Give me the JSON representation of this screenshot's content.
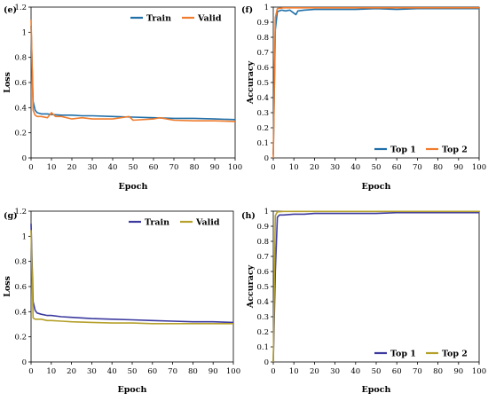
{
  "chart_data": [
    {
      "panel": "(e)",
      "type": "line",
      "xlabel": "Epoch",
      "ylabel": "Loss",
      "xlim": [
        0,
        100
      ],
      "ylim": [
        0,
        1.2
      ],
      "xticks": [
        0,
        10,
        20,
        30,
        40,
        50,
        60,
        70,
        80,
        90,
        100
      ],
      "yticks": [
        "0",
        "0.2",
        "0.4",
        "0.6",
        "0.8",
        "1",
        "1.2"
      ],
      "legend": "top-right",
      "series": [
        {
          "name": "Train",
          "color": "#1f6fa8",
          "x": [
            0,
            1,
            2,
            3,
            5,
            8,
            10,
            15,
            20,
            25,
            30,
            40,
            50,
            60,
            70,
            80,
            90,
            100
          ],
          "y": [
            1.05,
            0.45,
            0.38,
            0.36,
            0.35,
            0.35,
            0.345,
            0.34,
            0.34,
            0.335,
            0.335,
            0.33,
            0.325,
            0.32,
            0.315,
            0.315,
            0.31,
            0.305
          ]
        },
        {
          "name": "Valid",
          "color": "#f07c2d",
          "x": [
            0,
            1,
            2,
            3,
            5,
            8,
            10,
            12,
            15,
            20,
            25,
            30,
            40,
            48,
            50,
            60,
            63,
            70,
            80,
            90,
            100
          ],
          "y": [
            1.1,
            0.38,
            0.34,
            0.33,
            0.33,
            0.32,
            0.36,
            0.33,
            0.33,
            0.31,
            0.32,
            0.31,
            0.31,
            0.33,
            0.3,
            0.31,
            0.32,
            0.3,
            0.295,
            0.295,
            0.29
          ]
        }
      ]
    },
    {
      "panel": "(f)",
      "type": "line",
      "xlabel": "Epoch",
      "ylabel": "Accuracy",
      "xlim": [
        0,
        100
      ],
      "ylim": [
        0,
        1
      ],
      "xticks": [
        0,
        10,
        20,
        30,
        40,
        50,
        60,
        70,
        80,
        90,
        100
      ],
      "yticks": [
        "0",
        "0.1",
        "0.2",
        "0.3",
        "0.4",
        "0.5",
        "0.6",
        "0.7",
        "0.8",
        "0.9",
        "1"
      ],
      "legend": "bottom-right",
      "series": [
        {
          "name": "Top 1",
          "color": "#1f6fa8",
          "x": [
            0,
            1,
            2,
            4,
            6,
            8,
            10,
            11,
            12,
            15,
            20,
            30,
            40,
            50,
            60,
            70,
            80,
            90,
            100
          ],
          "y": [
            0.02,
            0.85,
            0.97,
            0.98,
            0.975,
            0.98,
            0.96,
            0.95,
            0.975,
            0.98,
            0.985,
            0.985,
            0.985,
            0.99,
            0.985,
            0.99,
            0.99,
            0.99,
            0.99
          ]
        },
        {
          "name": "Top 2",
          "color": "#f07c2d",
          "x": [
            0,
            1,
            2,
            5,
            10,
            20,
            40,
            60,
            80,
            100
          ],
          "y": [
            0.0,
            0.93,
            0.99,
            0.995,
            0.995,
            0.995,
            0.995,
            0.995,
            0.995,
            0.995
          ]
        }
      ]
    },
    {
      "panel": "(g)",
      "type": "line",
      "xlabel": "Epoch",
      "ylabel": "Loss",
      "xlim": [
        0,
        100
      ],
      "ylim": [
        0,
        1.2
      ],
      "xticks": [
        0,
        10,
        20,
        30,
        40,
        50,
        60,
        70,
        80,
        90,
        100
      ],
      "yticks": [
        "0",
        "0.2",
        "0.4",
        "0.6",
        "0.8",
        "1",
        "1.2"
      ],
      "legend": "top-right",
      "series": [
        {
          "name": "Train",
          "color": "#3c3a9e",
          "x": [
            0,
            1,
            2,
            3,
            5,
            8,
            10,
            15,
            20,
            30,
            40,
            50,
            60,
            70,
            80,
            90,
            100
          ],
          "y": [
            1.1,
            0.48,
            0.41,
            0.39,
            0.38,
            0.37,
            0.37,
            0.36,
            0.355,
            0.345,
            0.34,
            0.335,
            0.33,
            0.325,
            0.32,
            0.32,
            0.315
          ]
        },
        {
          "name": "Valid",
          "color": "#b5a02a",
          "x": [
            0,
            1,
            2,
            3,
            5,
            8,
            10,
            15,
            20,
            30,
            40,
            50,
            60,
            70,
            80,
            90,
            100
          ],
          "y": [
            1.05,
            0.35,
            0.34,
            0.34,
            0.34,
            0.33,
            0.33,
            0.325,
            0.32,
            0.315,
            0.31,
            0.31,
            0.305,
            0.305,
            0.305,
            0.305,
            0.305
          ]
        }
      ]
    },
    {
      "panel": "(h)",
      "type": "line",
      "xlabel": "Epoch",
      "ylabel": "Accuracy",
      "xlim": [
        0,
        100
      ],
      "ylim": [
        0,
        1
      ],
      "xticks": [
        0,
        10,
        20,
        30,
        40,
        50,
        60,
        70,
        80,
        90,
        100
      ],
      "yticks": [
        "0",
        "0.1",
        "0.2",
        "0.3",
        "0.4",
        "0.5",
        "0.6",
        "0.7",
        "0.8",
        "0.9",
        "1"
      ],
      "legend": "bottom-right",
      "series": [
        {
          "name": "Top 1",
          "color": "#3c3a9e",
          "x": [
            0,
            1,
            2,
            3,
            5,
            10,
            15,
            20,
            30,
            40,
            50,
            60,
            70,
            80,
            90,
            100
          ],
          "y": [
            0.0,
            0.6,
            0.96,
            0.975,
            0.975,
            0.98,
            0.98,
            0.985,
            0.985,
            0.985,
            0.985,
            0.99,
            0.99,
            0.99,
            0.99,
            0.99
          ]
        },
        {
          "name": "Top 2",
          "color": "#b5a02a",
          "x": [
            0,
            1,
            2,
            5,
            10,
            20,
            40,
            60,
            80,
            100
          ],
          "y": [
            0.0,
            0.97,
            0.995,
            0.998,
            0.998,
            0.998,
            0.998,
            0.998,
            0.998,
            0.998
          ]
        }
      ]
    }
  ]
}
